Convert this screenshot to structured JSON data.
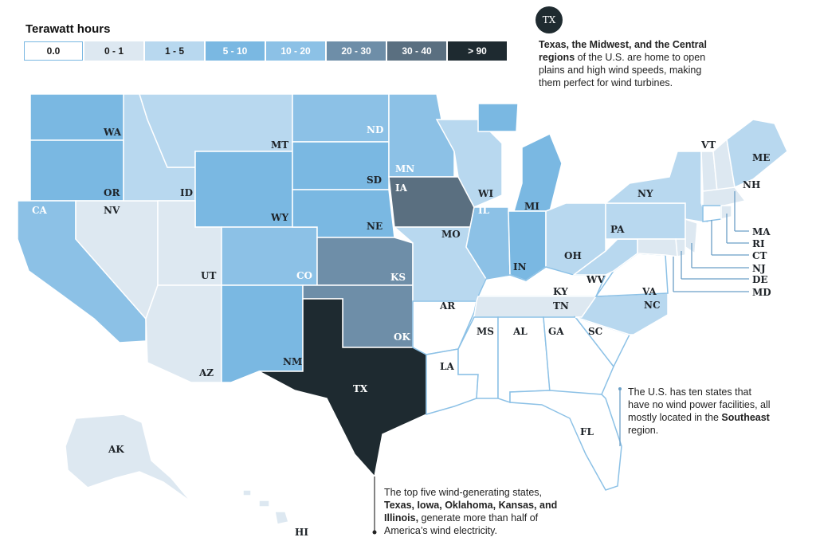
{
  "legend": {
    "title": "Terawatt hours",
    "bins": [
      {
        "label": "0.0",
        "color": "#ffffff"
      },
      {
        "label": "0 - 1",
        "color": "#dde8f1"
      },
      {
        "label": "1 - 5",
        "color": "#b8d8ef"
      },
      {
        "label": "5 - 10",
        "color": "#7ab8e2"
      },
      {
        "label": "10 - 20",
        "color": "#8cc1e6"
      },
      {
        "label": "20 - 30",
        "color": "#6e8ea8"
      },
      {
        "label": "30 - 40",
        "color": "#5a6f80"
      },
      {
        "label": "> 90",
        "color": "#1e2a30"
      }
    ]
  },
  "tx_badge": "TX",
  "notes": {
    "top_bold": "Texas, the Midwest, and the Central regions",
    "top_rest": " of the U.S. are home to open plains and high wind speeds, making them perfect for wind turbines.",
    "right_a": "The U.S. has ten states that have no wind power facilities, all mostly located in the ",
    "right_bold": "Southeast",
    "right_b": " region.",
    "bottom_a": "The top five wind-generating states, ",
    "bottom_bold": "Texas, Iowa, Oklahoma, Kansas, and Illinois,",
    "bottom_b": " generate more than half of America’s wind electricity."
  },
  "states": {
    "WA": {
      "label": "WA",
      "bin": "5 - 10"
    },
    "OR": {
      "label": "OR",
      "bin": "5 - 10"
    },
    "CA": {
      "label": "CA",
      "bin": "10 - 20"
    },
    "NV": {
      "label": "NV",
      "bin": "0 - 1"
    },
    "ID": {
      "label": "ID",
      "bin": "1 - 5"
    },
    "MT": {
      "label": "MT",
      "bin": "1 - 5"
    },
    "WY": {
      "label": "WY",
      "bin": "5 - 10"
    },
    "UT": {
      "label": "UT",
      "bin": "0 - 1"
    },
    "AZ": {
      "label": "AZ",
      "bin": "0 - 1"
    },
    "CO": {
      "label": "CO",
      "bin": "10 - 20"
    },
    "NM": {
      "label": "NM",
      "bin": "5 - 10"
    },
    "ND": {
      "label": "ND",
      "bin": "10 - 20"
    },
    "SD": {
      "label": "SD",
      "bin": "5 - 10"
    },
    "NE": {
      "label": "NE",
      "bin": "5 - 10"
    },
    "KS": {
      "label": "KS",
      "bin": "20 - 30"
    },
    "OK": {
      "label": "OK",
      "bin": "20 - 30"
    },
    "TX": {
      "label": "TX",
      "bin": "> 90"
    },
    "MN": {
      "label": "MN",
      "bin": "10 - 20"
    },
    "IA": {
      "label": "IA",
      "bin": "30 - 40"
    },
    "MO": {
      "label": "MO",
      "bin": "1 - 5"
    },
    "AR": {
      "label": "AR",
      "bin": "0.0"
    },
    "LA": {
      "label": "LA",
      "bin": "0.0"
    },
    "WI": {
      "label": "WI",
      "bin": "1 - 5"
    },
    "IL": {
      "label": "IL",
      "bin": "10 - 20"
    },
    "MI": {
      "label": "MI",
      "bin": "5 - 10"
    },
    "IN": {
      "label": "IN",
      "bin": "5 - 10"
    },
    "OH": {
      "label": "OH",
      "bin": "1 - 5"
    },
    "KY": {
      "label": "KY",
      "bin": "0.0"
    },
    "TN": {
      "label": "TN",
      "bin": "0 - 1"
    },
    "MS": {
      "label": "MS",
      "bin": "0.0"
    },
    "AL": {
      "label": "AL",
      "bin": "0.0"
    },
    "GA": {
      "label": "GA",
      "bin": "0.0"
    },
    "SC": {
      "label": "SC",
      "bin": "0.0"
    },
    "NC": {
      "label": "NC",
      "bin": "1 - 5"
    },
    "VA": {
      "label": "VA",
      "bin": "0.0"
    },
    "WV": {
      "label": "WV",
      "bin": "1 - 5"
    },
    "PA": {
      "label": "PA",
      "bin": "1 - 5"
    },
    "NY": {
      "label": "NY",
      "bin": "1 - 5"
    },
    "VT": {
      "label": "VT",
      "bin": "0 - 1"
    },
    "NH": {
      "label": "NH",
      "bin": "0 - 1"
    },
    "ME": {
      "label": "ME",
      "bin": "1 - 5"
    },
    "MA": {
      "label": "MA",
      "bin": "0 - 1"
    },
    "RI": {
      "label": "RI",
      "bin": "0 - 1"
    },
    "CT": {
      "label": "CT",
      "bin": "0.0"
    },
    "NJ": {
      "label": "NJ",
      "bin": "0 - 1"
    },
    "DE": {
      "label": "DE",
      "bin": "0 - 1"
    },
    "MD": {
      "label": "MD",
      "bin": "0 - 1"
    },
    "FL": {
      "label": "FL",
      "bin": "0.0"
    },
    "AK": {
      "label": "AK",
      "bin": "0 - 1"
    },
    "HI": {
      "label": "HI",
      "bin": "0 - 1"
    }
  }
}
